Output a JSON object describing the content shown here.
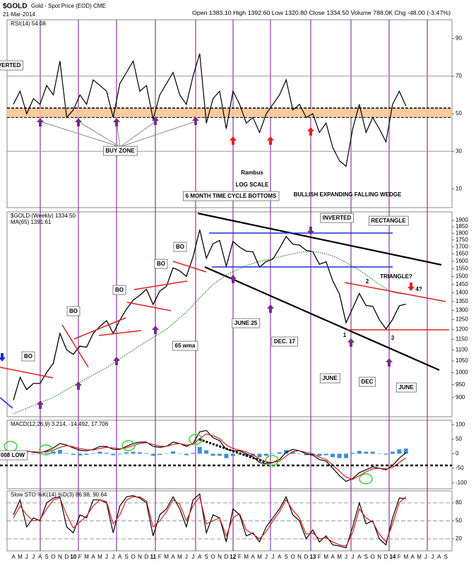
{
  "header": {
    "symbol": "$GOLD",
    "title": "Gold - Spot Price (EOD) CME",
    "date": "21-Mar-2014",
    "stats": "Open 1383.10 High 1392.60 Low 1320.80 Close 1334.50 Volume 788.0K Chg -48.00 (-3.47%)"
  },
  "chart_data": [
    {
      "type": "line",
      "ylim": [
        0,
        100
      ],
      "yticks": [
        10,
        30,
        50,
        70,
        90
      ],
      "reference_lines": [
        70,
        30
      ],
      "band": [
        48,
        53
      ],
      "series": [
        {
          "name": "RSI(14) 54.08",
          "color": "#000000",
          "values": [
            55,
            62,
            50,
            58,
            55,
            65,
            60,
            78,
            48,
            52,
            60,
            55,
            68,
            65,
            62,
            48,
            66,
            72,
            78,
            62,
            65,
            47,
            60,
            66,
            72,
            60,
            55,
            70,
            82,
            45,
            58,
            62,
            42,
            62,
            55,
            45,
            48,
            40,
            50,
            55,
            60,
            68,
            52,
            55,
            48,
            50,
            40,
            45,
            32,
            25,
            22,
            42,
            55,
            40,
            48,
            42,
            35,
            55,
            62,
            54.08,
            null,
            null,
            null,
            null,
            null,
            null
          ]
        }
      ],
      "annotations": [
        "IVERTED",
        "BUY ZONE",
        "Rambus",
        "LOG SCALE"
      ]
    },
    {
      "type": "line",
      "log": true,
      "ylim": [
        830,
        1970
      ],
      "yticks": [
        1900,
        1850,
        1800,
        1750,
        1700,
        1650,
        1600,
        1550,
        1500,
        1450,
        1400,
        1350,
        1300,
        1250,
        1200,
        1150,
        1100,
        1050,
        1000,
        950,
        900
      ],
      "series": [
        {
          "name": "$GOLD (Weekly) 1334.50",
          "color": "#000000",
          "values": [
            890,
            980,
            930,
            955,
            955,
            1000,
            1040,
            1180,
            1100,
            1080,
            1118,
            1113,
            1180,
            1215,
            1245,
            1180,
            1248,
            1307,
            1357,
            1386,
            1421,
            1333,
            1410,
            1439,
            1556,
            1536,
            1500,
            1628,
            1828,
            1620,
            1722,
            1746,
            1566,
            1740,
            1697,
            1669,
            1664,
            1560,
            1598,
            1614,
            1690,
            1776,
            1719,
            1712,
            1675,
            1664,
            1579,
            1596,
            1472,
            1393,
            1234,
            1312,
            1396,
            1327,
            1323,
            1250,
            1202,
            1251,
            1326,
            1334.5,
            null,
            null,
            null,
            null,
            null,
            null
          ]
        },
        {
          "name": "MA(65) 1391.61",
          "color": "#2a8a2a",
          "dashed": true,
          "values": [
            840,
            850,
            860,
            870,
            880,
            890,
            900,
            915,
            930,
            945,
            960,
            975,
            990,
            1005,
            1020,
            1040,
            1060,
            1080,
            1100,
            1120,
            1140,
            1160,
            1180,
            1200,
            1230,
            1260,
            1290,
            1330,
            1370,
            1410,
            1450,
            1480,
            1510,
            1530,
            1550,
            1570,
            1585,
            1600,
            1610,
            1620,
            1630,
            1640,
            1650,
            1660,
            1665,
            1665,
            1660,
            1650,
            1635,
            1615,
            1590,
            1565,
            1540,
            1510,
            1480,
            1450,
            1425,
            1405,
            1395,
            1391.61,
            null,
            null,
            null,
            null,
            null,
            null
          ]
        }
      ],
      "annotations": [
        "6 MONTH TIME CYCLE BOTTOMS",
        "BULLISH EXPANDING FALLING WEDGE",
        "INVERTED",
        "RECTANGLE",
        "TRIANGLE?",
        "BO",
        "BO",
        "BO",
        "BO",
        "BO",
        "65 wma",
        "JUNE 25",
        "DEC. 17",
        "JUNE",
        "DEC",
        "JUNE",
        "1",
        "2",
        "3",
        "4?"
      ]
    },
    {
      "type": "line",
      "label": "MACD(12,26,9) 3.214, -14.492, 17.706",
      "ylim": [
        -120,
        115
      ],
      "yticks": [
        -100,
        -50,
        0,
        50,
        100
      ],
      "series": [
        {
          "type": "bar",
          "color": "#3d8fd1",
          "values": [
            0,
            2,
            2,
            -2,
            -2,
            3,
            8,
            13,
            2,
            -4,
            -6,
            -4,
            2,
            7,
            3,
            -5,
            -2,
            5,
            7,
            5,
            2,
            -7,
            -4,
            0,
            8,
            0,
            -5,
            3,
            23,
            12,
            -7,
            -7,
            -15,
            -8,
            -2,
            -6,
            -7,
            -12,
            -7,
            0,
            5,
            13,
            7,
            0,
            -5,
            -5,
            -8,
            -5,
            -12,
            -15,
            -15,
            3,
            10,
            7,
            7,
            0,
            -3,
            7,
            15,
            17.706,
            null,
            null,
            null,
            null,
            null,
            null
          ]
        },
        {
          "color": "#000000",
          "values": [
            5,
            8,
            10,
            5,
            3,
            10,
            20,
            35,
            30,
            20,
            12,
            10,
            15,
            25,
            25,
            15,
            15,
            25,
            35,
            40,
            40,
            25,
            22,
            25,
            40,
            35,
            25,
            35,
            75,
            80,
            55,
            45,
            15,
            10,
            10,
            0,
            -10,
            -30,
            -35,
            -30,
            -20,
            5,
            15,
            10,
            0,
            -5,
            -20,
            -25,
            -50,
            -75,
            -95,
            -85,
            -65,
            -55,
            -45,
            -50,
            -55,
            -40,
            -15,
            3.214,
            null,
            null,
            null,
            null,
            null,
            null
          ]
        },
        {
          "color": "#d42020",
          "values": [
            5,
            6,
            8,
            7,
            5,
            7,
            12,
            22,
            28,
            24,
            18,
            14,
            13,
            18,
            22,
            20,
            17,
            20,
            28,
            35,
            38,
            32,
            26,
            25,
            32,
            35,
            30,
            32,
            52,
            68,
            62,
            52,
            30,
            18,
            12,
            6,
            -3,
            -18,
            -28,
            -30,
            -25,
            -8,
            8,
            10,
            5,
            0,
            -12,
            -20,
            -38,
            -60,
            -80,
            -88,
            -75,
            -62,
            -52,
            -50,
            -52,
            -47,
            -30,
            -14.492,
            null,
            null,
            null,
            null,
            null,
            null
          ]
        }
      ],
      "annotations": [
        "008 LOW"
      ]
    },
    {
      "type": "line",
      "label": "Slow STO %K(14) %D(3) 86.98, 90.64",
      "ylim": [
        0,
        100
      ],
      "yticks": [
        20,
        50,
        80
      ],
      "reference_lines": [
        80,
        50,
        20
      ],
      "series": [
        {
          "color": "#000000",
          "values": [
            60,
            85,
            40,
            55,
            50,
            80,
            88,
            90,
            40,
            30,
            60,
            55,
            85,
            85,
            80,
            30,
            75,
            90,
            92,
            88,
            80,
            25,
            60,
            70,
            90,
            70,
            40,
            85,
            95,
            30,
            60,
            55,
            15,
            70,
            60,
            25,
            30,
            15,
            40,
            55,
            70,
            90,
            60,
            50,
            20,
            35,
            15,
            25,
            10,
            8,
            5,
            40,
            80,
            45,
            50,
            20,
            10,
            55,
            88,
            86.98,
            null,
            null,
            null,
            null,
            null,
            null
          ]
        },
        {
          "color": "#d42020",
          "values": [
            55,
            75,
            60,
            50,
            52,
            70,
            85,
            88,
            60,
            38,
            48,
            58,
            75,
            85,
            82,
            45,
            60,
            85,
            90,
            90,
            83,
            40,
            50,
            65,
            85,
            78,
            50,
            75,
            90,
            45,
            50,
            55,
            25,
            55,
            62,
            35,
            28,
            20,
            32,
            50,
            65,
            85,
            68,
            55,
            28,
            30,
            20,
            22,
            15,
            10,
            8,
            30,
            70,
            55,
            48,
            28,
            15,
            45,
            80,
            90.64,
            null,
            null,
            null,
            null,
            null,
            null
          ]
        }
      ],
      "categories": [
        "A",
        "M",
        "J",
        "J",
        "A",
        "S",
        "O",
        "N",
        "D",
        "10",
        "F",
        "M",
        "A",
        "M",
        "J",
        "J",
        "A",
        "S",
        "O",
        "N",
        "D",
        "11",
        "F",
        "M",
        "A",
        "M",
        "J",
        "J",
        "A",
        "S",
        "O",
        "N",
        "D",
        "12",
        "F",
        "M",
        "A",
        "M",
        "J",
        "J",
        "A",
        "S",
        "O",
        "N",
        "D",
        "13",
        "F",
        "M",
        "A",
        "M",
        "J",
        "J",
        "A",
        "S",
        "O",
        "N",
        "D",
        "14",
        "F",
        "M",
        "A",
        "M",
        "J",
        "J",
        "A",
        "S"
      ]
    }
  ]
}
